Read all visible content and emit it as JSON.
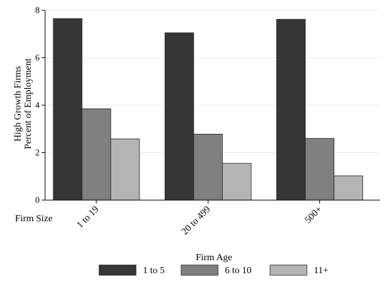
{
  "chart_data": {
    "type": "bar",
    "title": "",
    "xlabel": "Firm Size",
    "ylabel_lines": [
      "High Growth Firms",
      "Percent of Employment"
    ],
    "categories": [
      "1 to 19",
      "20 to 499",
      "500+"
    ],
    "yticks": [
      "0",
      "2",
      "4",
      "6",
      "8"
    ],
    "ylim": [
      0,
      8
    ],
    "grid": true,
    "legend_title": "Firm Age",
    "legend_position": "bottom",
    "series": [
      {
        "name": "1 to 5",
        "color": "#363636",
        "values": [
          7.65,
          7.05,
          7.62
        ]
      },
      {
        "name": "6 to 10",
        "color": "#808080",
        "values": [
          3.85,
          2.78,
          2.6
        ]
      },
      {
        "name": "11+",
        "color": "#b4b4b4",
        "values": [
          2.58,
          1.55,
          1.02
        ]
      }
    ]
  }
}
